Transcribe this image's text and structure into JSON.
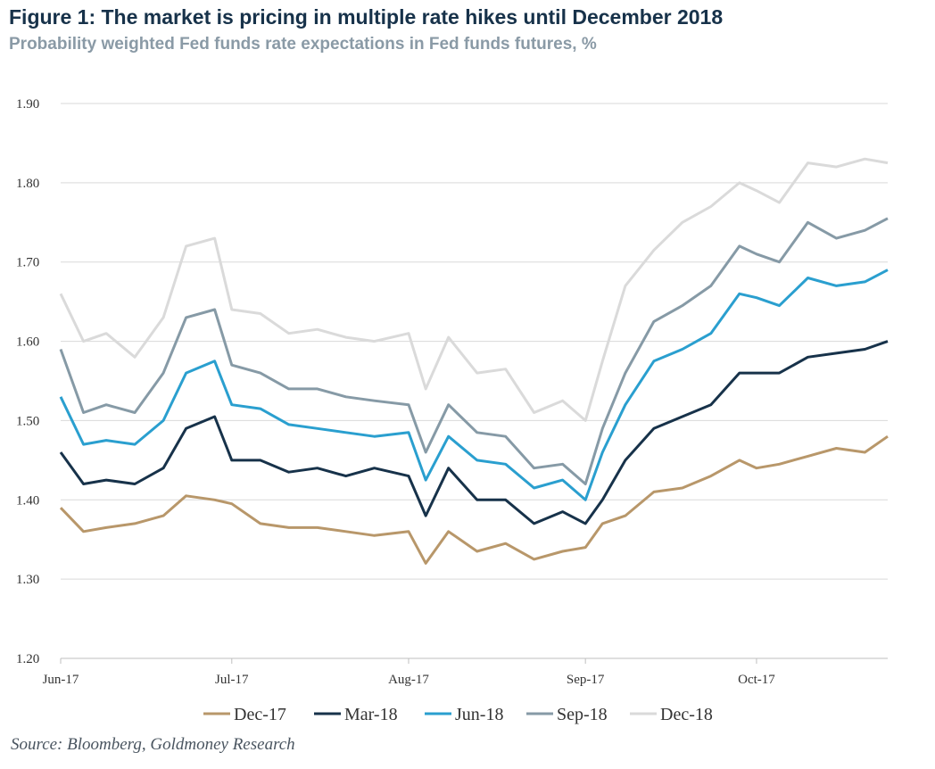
{
  "title": "Figure 1: The market is pricing in multiple rate hikes until December 2018",
  "subtitle": "Probability weighted Fed funds rate expectations in Fed funds futures, %",
  "source": "Source: Bloomberg, Goldmoney Research",
  "chart_data": {
    "type": "line",
    "ylim": [
      1.2,
      1.9
    ],
    "yticks": [
      "1.20",
      "1.30",
      "1.40",
      "1.50",
      "1.60",
      "1.70",
      "1.80",
      "1.90"
    ],
    "xticks": [
      {
        "label": "Jun-17",
        "date": "2017-06-01"
      },
      {
        "label": "Jul-17",
        "date": "2017-07-01"
      },
      {
        "label": "Aug-17",
        "date": "2017-08-01"
      },
      {
        "label": "Sep-17",
        "date": "2017-09-01"
      },
      {
        "label": "Oct-17",
        "date": "2017-10-01"
      }
    ],
    "grid": true,
    "legend_position": "bottom",
    "x": [
      "2017-06-01",
      "2017-06-05",
      "2017-06-09",
      "2017-06-14",
      "2017-06-19",
      "2017-06-23",
      "2017-06-28",
      "2017-07-01",
      "2017-07-06",
      "2017-07-11",
      "2017-07-16",
      "2017-07-21",
      "2017-07-26",
      "2017-08-01",
      "2017-08-04",
      "2017-08-08",
      "2017-08-13",
      "2017-08-18",
      "2017-08-23",
      "2017-08-28",
      "2017-09-01",
      "2017-09-04",
      "2017-09-08",
      "2017-09-13",
      "2017-09-18",
      "2017-09-23",
      "2017-09-28",
      "2017-10-01",
      "2017-10-05",
      "2017-10-10",
      "2017-10-15",
      "2017-10-20",
      "2017-10-24"
    ],
    "series": [
      {
        "name": "Dec-17",
        "color": "#b8976a",
        "values": [
          1.39,
          1.36,
          1.365,
          1.37,
          1.38,
          1.405,
          1.4,
          1.395,
          1.37,
          1.365,
          1.365,
          1.36,
          1.355,
          1.36,
          1.32,
          1.36,
          1.335,
          1.345,
          1.325,
          1.335,
          1.34,
          1.37,
          1.38,
          1.41,
          1.415,
          1.43,
          1.45,
          1.44,
          1.445,
          1.455,
          1.465,
          1.46,
          1.48
        ]
      },
      {
        "name": "Mar-18",
        "color": "#17324a",
        "values": [
          1.46,
          1.42,
          1.425,
          1.42,
          1.44,
          1.49,
          1.505,
          1.45,
          1.45,
          1.435,
          1.44,
          1.43,
          1.44,
          1.43,
          1.38,
          1.44,
          1.4,
          1.4,
          1.37,
          1.385,
          1.37,
          1.4,
          1.45,
          1.49,
          1.505,
          1.52,
          1.56,
          1.56,
          1.56,
          1.58,
          1.585,
          1.59,
          1.6
        ]
      },
      {
        "name": "Jun-18",
        "color": "#2a9fcf",
        "values": [
          1.53,
          1.47,
          1.475,
          1.47,
          1.5,
          1.56,
          1.575,
          1.52,
          1.515,
          1.495,
          1.49,
          1.485,
          1.48,
          1.485,
          1.425,
          1.48,
          1.45,
          1.445,
          1.415,
          1.425,
          1.4,
          1.46,
          1.52,
          1.575,
          1.59,
          1.61,
          1.66,
          1.655,
          1.645,
          1.68,
          1.67,
          1.675,
          1.69
        ]
      },
      {
        "name": "Sep-18",
        "color": "#869aa6",
        "values": [
          1.59,
          1.51,
          1.52,
          1.51,
          1.56,
          1.63,
          1.64,
          1.57,
          1.56,
          1.54,
          1.54,
          1.53,
          1.525,
          1.52,
          1.46,
          1.52,
          1.485,
          1.48,
          1.44,
          1.445,
          1.42,
          1.49,
          1.56,
          1.625,
          1.645,
          1.67,
          1.72,
          1.71,
          1.7,
          1.75,
          1.73,
          1.74,
          1.755
        ]
      },
      {
        "name": "Dec-18",
        "color": "#dadada",
        "values": [
          1.66,
          1.6,
          1.61,
          1.58,
          1.63,
          1.72,
          1.73,
          1.64,
          1.635,
          1.61,
          1.615,
          1.605,
          1.6,
          1.61,
          1.54,
          1.605,
          1.56,
          1.565,
          1.51,
          1.525,
          1.5,
          1.575,
          1.67,
          1.715,
          1.75,
          1.77,
          1.8,
          1.79,
          1.775,
          1.825,
          1.82,
          1.83,
          1.825
        ]
      }
    ]
  }
}
